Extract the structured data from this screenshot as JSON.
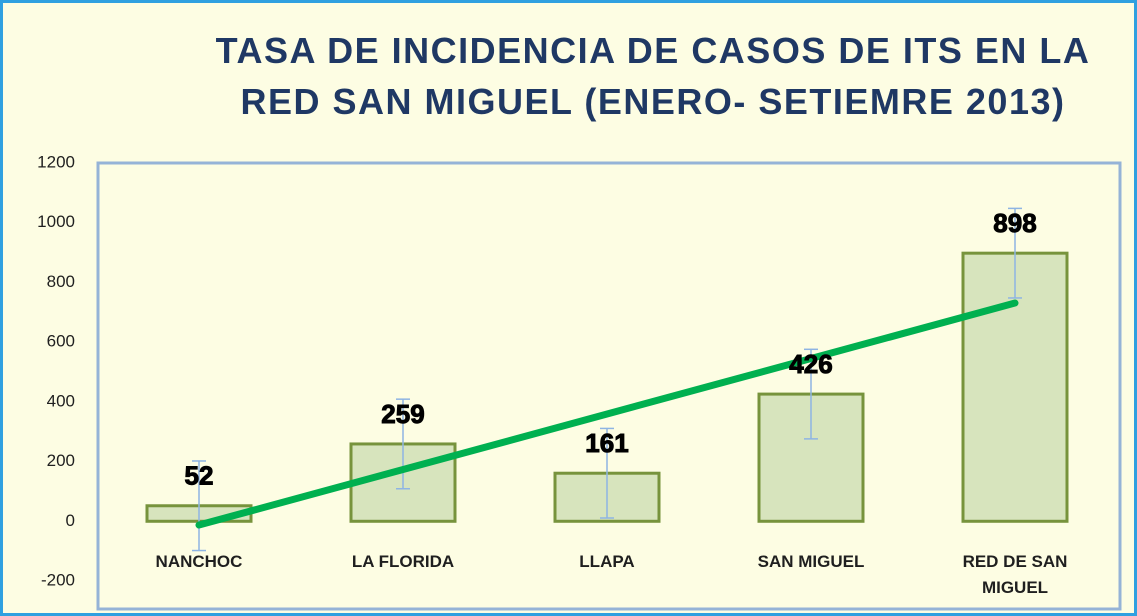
{
  "chart_data": {
    "type": "bar",
    "title": "TASA DE INCIDENCIA DE CASOS DE ITS EN LA RED SAN MIGUEL (ENERO- SETIEMRE 2013)",
    "categories": [
      "NANCHOC",
      "LA FLORIDA",
      "LLAPA",
      "SAN MIGUEL",
      "RED DE SAN MIGUEL"
    ],
    "values": [
      52,
      259,
      161,
      426,
      898
    ],
    "errors": [
      150,
      150,
      150,
      150,
      150
    ],
    "color": "#d7e4bd",
    "edge_color": "#77933c",
    "error_color": "#8eb4e3",
    "trendline": true,
    "trendline_color": "#00b050",
    "ylim": [
      -200,
      1200
    ],
    "yticks": [
      -200,
      0,
      200,
      400,
      600,
      800,
      1000,
      1200
    ]
  }
}
